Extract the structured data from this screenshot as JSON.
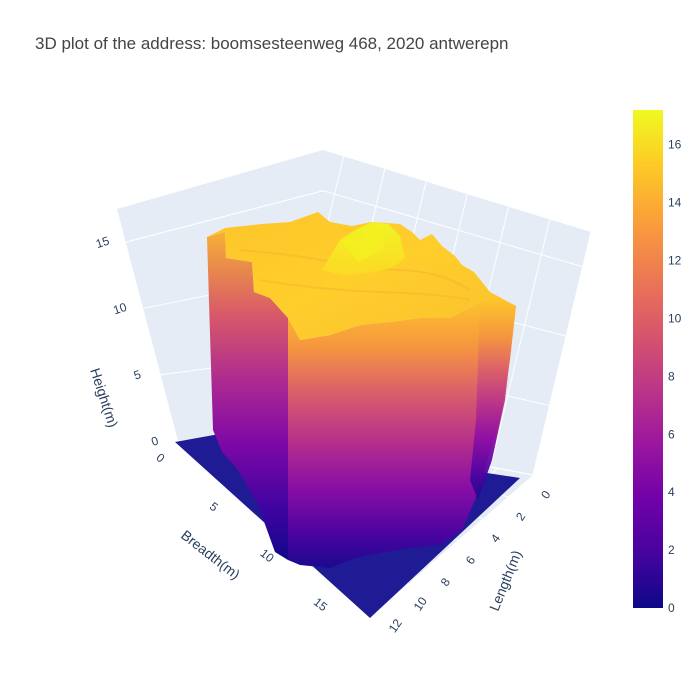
{
  "chart_data": {
    "type": "surface",
    "title": "3D plot of the address: boomsesteenweg 468, 2020 antwerepn",
    "x_axis": {
      "label": "Length(m)",
      "range": [
        0,
        13
      ],
      "ticks": [
        0,
        2,
        4,
        6,
        8,
        10,
        12
      ]
    },
    "y_axis": {
      "label": "Breadth(m)",
      "range": [
        0,
        18
      ],
      "ticks": [
        0,
        5,
        10,
        15
      ]
    },
    "z_axis": {
      "label": "Height(m)",
      "range": [
        0,
        17.5
      ],
      "ticks": [
        0,
        5,
        10,
        15
      ]
    },
    "colorbar": {
      "range": [
        0,
        17.2
      ],
      "ticks": [
        0,
        2,
        4,
        6,
        8,
        10,
        12,
        14,
        16
      ]
    },
    "colorscale": [
      "#0d0887",
      "#46039f",
      "#7201a8",
      "#9c179e",
      "#bd3786",
      "#d8576b",
      "#ed7953",
      "#fb9f3a",
      "#fdca26",
      "#f0f921"
    ],
    "building": {
      "ground_level": 0,
      "roof_height": 15.5,
      "peak_height": 17.2,
      "peak_location": {
        "length": 7,
        "breadth": 4
      }
    },
    "grid": true,
    "background": "#e5ecf6"
  }
}
